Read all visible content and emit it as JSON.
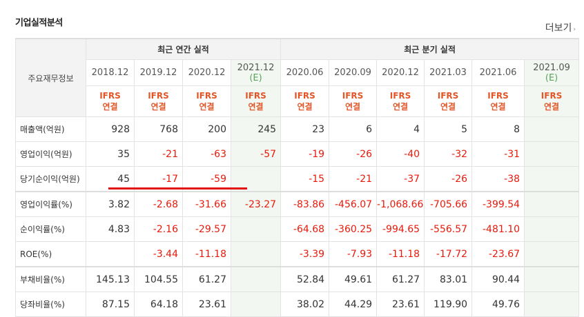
{
  "title": "기업실적분석",
  "more_label": "더보기",
  "more_arrow": "›",
  "table": {
    "corner_label": "주요재무정보",
    "annual_group": "최근 연간 실적",
    "quarter_group": "최근 분기 실적",
    "periods": [
      {
        "p": "2018.12",
        "est": false
      },
      {
        "p": "2019.12",
        "est": false
      },
      {
        "p": "2020.12",
        "est": false
      },
      {
        "p": "2021.12",
        "e": "(E)",
        "est": true
      },
      {
        "p": "2020.06",
        "est": false
      },
      {
        "p": "2020.09",
        "est": false
      },
      {
        "p": "2020.12",
        "est": false
      },
      {
        "p": "2021.03",
        "est": false
      },
      {
        "p": "2021.06",
        "est": false
      },
      {
        "p": "2021.09",
        "e": "(E)",
        "est": true
      }
    ],
    "ifrs_line1": "IFRS",
    "ifrs_line2": "연결",
    "rows": [
      {
        "label": "매출액(억원)",
        "values": [
          "928",
          "768",
          "200",
          "245",
          "23",
          "6",
          "4",
          "5",
          "8",
          ""
        ]
      },
      {
        "label": "영업이익(억원)",
        "values": [
          "35",
          "-21",
          "-63",
          "-57",
          "-19",
          "-26",
          "-40",
          "-32",
          "-31",
          ""
        ]
      },
      {
        "label": "당기순이익(억원)",
        "values": [
          "45",
          "-17",
          "-59",
          "",
          "-15",
          "-21",
          "-37",
          "-26",
          "-38",
          ""
        ]
      },
      {
        "label": "영업이익률(%)",
        "values": [
          "3.82",
          "-2.68",
          "-31.66",
          "-23.27",
          "-83.86",
          "-456.07",
          "-1,068.66",
          "-705.66",
          "-399.54",
          ""
        ]
      },
      {
        "label": "순이익률(%)",
        "values": [
          "4.83",
          "-2.16",
          "-29.57",
          "",
          "-64.68",
          "-360.25",
          "-994.65",
          "-556.57",
          "-481.10",
          ""
        ]
      },
      {
        "label": "ROE(%)",
        "values": [
          "",
          "-3.44",
          "-11.18",
          "",
          "-3.39",
          "-7.93",
          "-11.18",
          "-17.72",
          "-23.67",
          ""
        ]
      },
      {
        "label": "부채비율(%)",
        "values": [
          "145.13",
          "104.55",
          "61.27",
          "",
          "52.84",
          "49.61",
          "61.27",
          "83.01",
          "90.44",
          ""
        ]
      },
      {
        "label": "당좌비율(%)",
        "values": [
          "87.15",
          "64.18",
          "23.61",
          "",
          "38.02",
          "44.29",
          "23.61",
          "119.90",
          "49.76",
          ""
        ]
      }
    ]
  },
  "colors": {
    "negative": "#e8190b",
    "ifrs": "#e25527",
    "estimate_bg": "#f2f8f1",
    "estimate_mark": "#57a55b",
    "annotation_line": "#e40b0b"
  }
}
